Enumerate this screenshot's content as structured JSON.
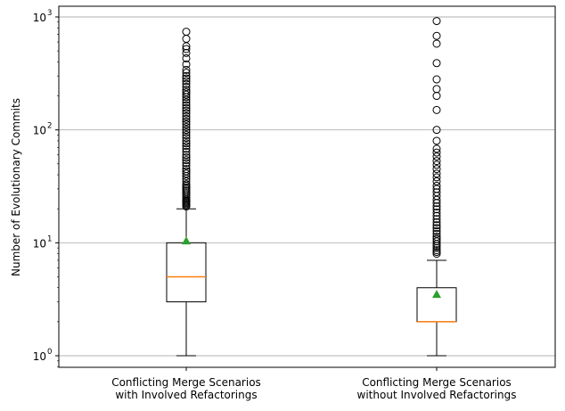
{
  "chart_data": {
    "type": "boxplot",
    "title": "",
    "xlabel": "",
    "ylabel": "Number of Evolutionary Commits",
    "yscale": "log",
    "ylim": [
      0.8,
      1300
    ],
    "grid": "y-major",
    "yticks": [
      {
        "value": 1,
        "base": "10",
        "exp": "0"
      },
      {
        "value": 10,
        "base": "10",
        "exp": "1"
      },
      {
        "value": 100,
        "base": "10",
        "exp": "2"
      },
      {
        "value": 1000,
        "base": "10",
        "exp": "3"
      }
    ],
    "categories": [
      [
        "Conflicting Merge Scenarios",
        "with Involved Refactorings"
      ],
      [
        "Conflicting Merge Scenarios",
        "without Involved Refactorings"
      ]
    ],
    "boxes": [
      {
        "whisker_low": 1,
        "q1": 3,
        "median": 5,
        "q3": 10,
        "whisker_high": 20,
        "mean": 10.4,
        "outliers": [
          21,
          21.5,
          22,
          22.5,
          23,
          23.5,
          24,
          25,
          26,
          27,
          28,
          29,
          30,
          31,
          32,
          33,
          35,
          37,
          39,
          41,
          43,
          45,
          48,
          51,
          54,
          57,
          60,
          64,
          68,
          72,
          76,
          80,
          85,
          90,
          95,
          100,
          106,
          112,
          118,
          125,
          132,
          140,
          148,
          156,
          165,
          175,
          185,
          195,
          205,
          215,
          225,
          240,
          255,
          270,
          285,
          300,
          320,
          340,
          380,
          430,
          480,
          520,
          550,
          640,
          740
        ]
      },
      {
        "whisker_low": 1,
        "q1": 2,
        "median": 2,
        "q3": 4,
        "whisker_high": 7,
        "mean": 3.5,
        "outliers": [
          8,
          8.3,
          8.6,
          9,
          9.4,
          9.8,
          10.3,
          10.8,
          11.3,
          12,
          12.7,
          13.5,
          14.3,
          15.2,
          16.2,
          17.3,
          18.5,
          19.8,
          21,
          22.5,
          24,
          26,
          28,
          30,
          32,
          35,
          38,
          41,
          45,
          49,
          53,
          58,
          63,
          68,
          80,
          100,
          150,
          200,
          230,
          280,
          390,
          580,
          680,
          920
        ]
      }
    ]
  },
  "colors": {
    "median": "#ff7f0e",
    "mean": "#2ca02c",
    "box": "#000000",
    "grid": "#b0b0b0"
  }
}
